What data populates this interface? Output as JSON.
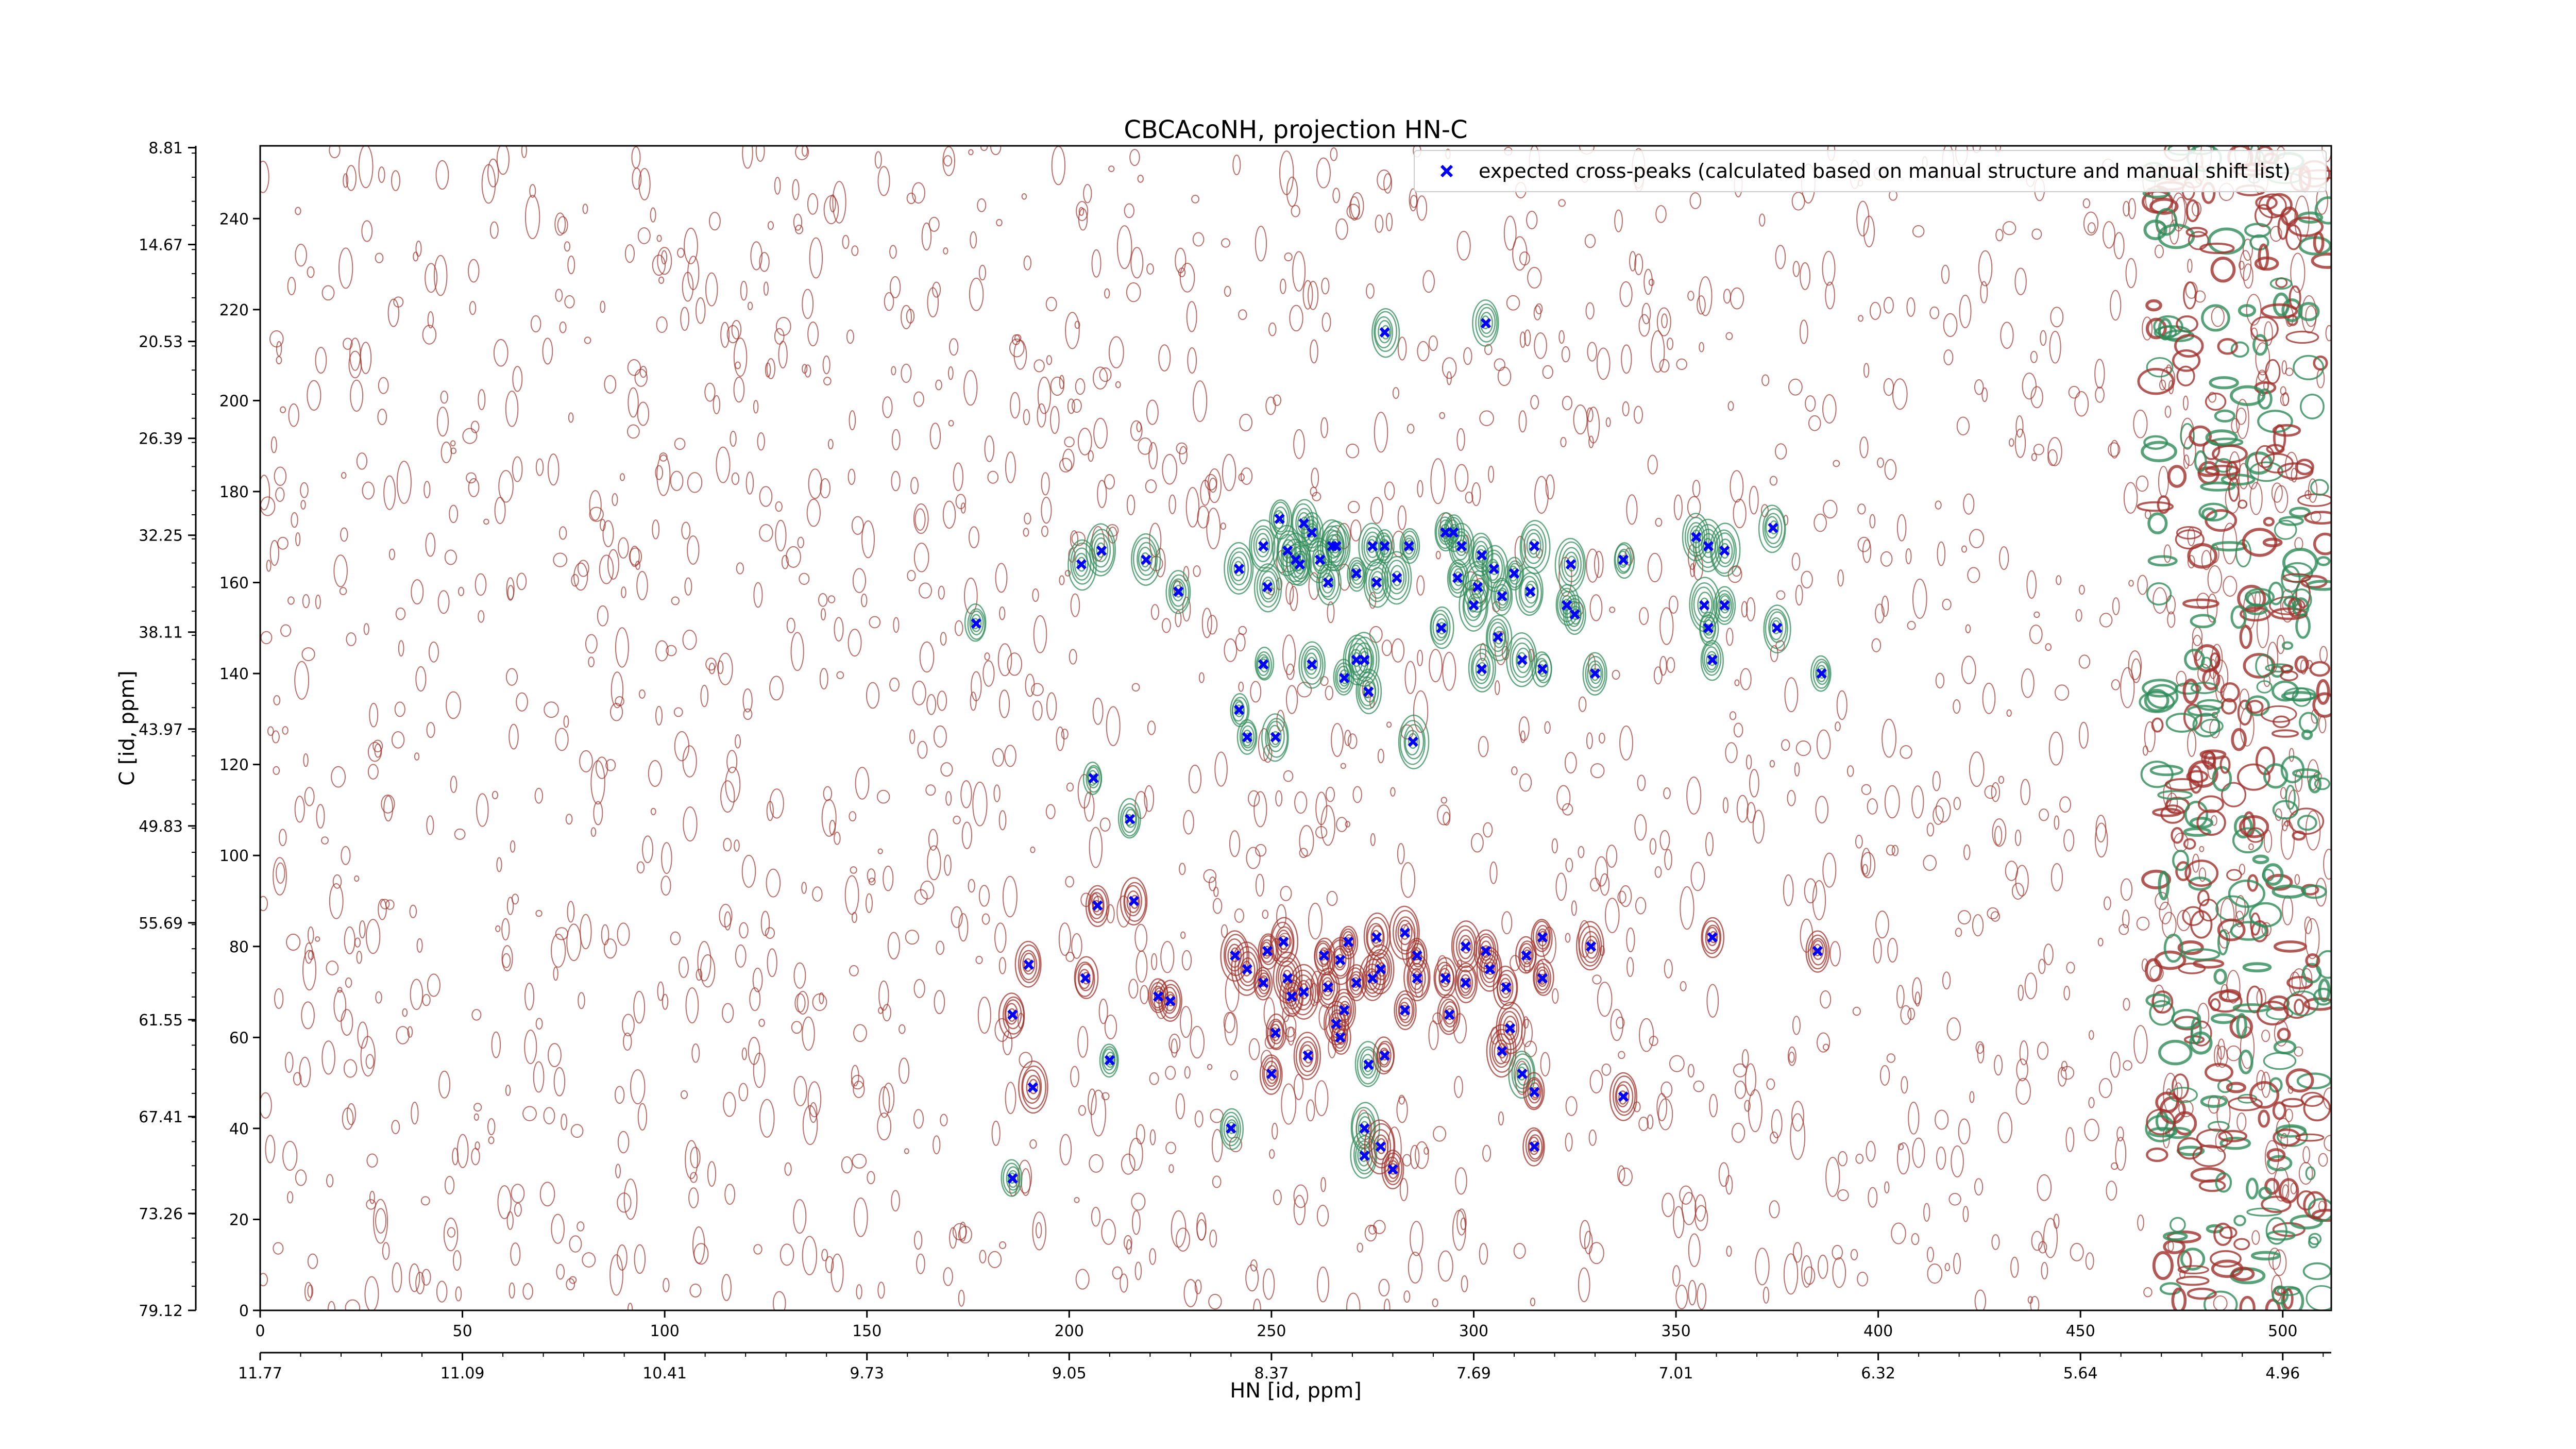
{
  "chart_data": {
    "type": "scatter",
    "title": "CBCAcoNH, projection HN-C",
    "xlabel": "HN [id, ppm]",
    "ylabel": "C [id, ppm]",
    "xlim": [
      0,
      512
    ],
    "ylim": [
      0,
      256
    ],
    "x_ticks": [
      0,
      50,
      100,
      150,
      200,
      250,
      300,
      350,
      400,
      450,
      500
    ],
    "y_ticks": [
      0,
      20,
      40,
      60,
      80,
      100,
      120,
      140,
      160,
      180,
      200,
      220,
      240
    ],
    "ppm_x_ticks": [
      {
        "pos": 0,
        "label": "11.77"
      },
      {
        "pos": 50,
        "label": "11.09"
      },
      {
        "pos": 100,
        "label": "10.41"
      },
      {
        "pos": 150,
        "label": "9.73"
      },
      {
        "pos": 200,
        "label": "9.05"
      },
      {
        "pos": 250,
        "label": "8.37"
      },
      {
        "pos": 300,
        "label": "7.69"
      },
      {
        "pos": 350,
        "label": "7.01"
      },
      {
        "pos": 400,
        "label": "6.32"
      },
      {
        "pos": 450,
        "label": "5.64"
      },
      {
        "pos": 500,
        "label": "4.96"
      }
    ],
    "ppm_y_ticks": [
      {
        "pos": 0,
        "label": "79.12"
      },
      {
        "pos": 21.3,
        "label": "73.26"
      },
      {
        "pos": 42.6,
        "label": "67.41"
      },
      {
        "pos": 63.9,
        "label": "61.55"
      },
      {
        "pos": 85.2,
        "label": "55.69"
      },
      {
        "pos": 106.5,
        "label": "49.83"
      },
      {
        "pos": 127.8,
        "label": "43.97"
      },
      {
        "pos": 149.1,
        "label": "38.11"
      },
      {
        "pos": 170.4,
        "label": "32.25"
      },
      {
        "pos": 191.7,
        "label": "26.39"
      },
      {
        "pos": 213.0,
        "label": "20.53"
      },
      {
        "pos": 234.3,
        "label": "14.67"
      },
      {
        "pos": 255.6,
        "label": "8.81"
      }
    ],
    "legend": {
      "position": "top-right",
      "label": "expected cross-peaks (calculated based on manual structure and manual shift list)"
    },
    "series": [
      {
        "name": "expected cross-peaks (calculated based on manual structure and manual shift list)",
        "color": "#0000ff",
        "marker": "x",
        "points": [
          [
            177,
            151
          ],
          [
            186,
            65
          ],
          [
            186,
            29
          ],
          [
            190,
            76
          ],
          [
            191,
            49
          ],
          [
            203,
            164
          ],
          [
            204,
            73
          ],
          [
            206,
            117
          ],
          [
            207,
            89
          ],
          [
            208,
            167
          ],
          [
            210,
            55
          ],
          [
            215,
            108
          ],
          [
            216,
            90
          ],
          [
            219,
            165
          ],
          [
            222,
            69
          ],
          [
            225,
            68
          ],
          [
            227,
            158
          ],
          [
            240,
            40
          ],
          [
            241,
            78
          ],
          [
            242,
            132
          ],
          [
            242,
            163
          ],
          [
            244,
            75
          ],
          [
            244,
            126
          ],
          [
            248,
            72
          ],
          [
            248,
            142
          ],
          [
            248,
            168
          ],
          [
            249,
            79
          ],
          [
            249,
            159
          ],
          [
            250,
            52
          ],
          [
            251,
            61
          ],
          [
            251,
            126
          ],
          [
            252,
            174
          ],
          [
            253,
            81
          ],
          [
            254,
            73
          ],
          [
            254,
            167
          ],
          [
            255,
            69
          ],
          [
            256,
            165
          ],
          [
            257,
            164
          ],
          [
            258,
            173
          ],
          [
            258,
            70
          ],
          [
            259,
            56
          ],
          [
            260,
            142
          ],
          [
            260,
            171
          ],
          [
            262,
            165
          ],
          [
            263,
            78
          ],
          [
            264,
            71
          ],
          [
            264,
            160
          ],
          [
            265,
            168
          ],
          [
            266,
            168
          ],
          [
            266,
            63
          ],
          [
            267,
            77
          ],
          [
            267,
            60
          ],
          [
            268,
            66
          ],
          [
            268,
            139
          ],
          [
            269,
            81
          ],
          [
            271,
            143
          ],
          [
            271,
            72
          ],
          [
            271,
            162
          ],
          [
            273,
            40
          ],
          [
            273,
            34
          ],
          [
            273,
            143
          ],
          [
            274,
            54
          ],
          [
            274,
            136
          ],
          [
            275,
            73
          ],
          [
            275,
            168
          ],
          [
            276,
            82
          ],
          [
            276,
            160
          ],
          [
            277,
            36
          ],
          [
            277,
            75
          ],
          [
            278,
            215
          ],
          [
            278,
            56
          ],
          [
            278,
            168
          ],
          [
            280,
            31
          ],
          [
            281,
            161
          ],
          [
            283,
            66
          ],
          [
            283,
            83
          ],
          [
            284,
            168
          ],
          [
            285,
            125
          ],
          [
            286,
            78
          ],
          [
            286,
            73
          ],
          [
            292,
            150
          ],
          [
            293,
            73
          ],
          [
            293,
            171
          ],
          [
            294,
            65
          ],
          [
            295,
            171
          ],
          [
            296,
            161
          ],
          [
            297,
            168
          ],
          [
            298,
            72
          ],
          [
            298,
            80
          ],
          [
            300,
            155
          ],
          [
            301,
            159
          ],
          [
            302,
            141
          ],
          [
            302,
            166
          ],
          [
            303,
            217
          ],
          [
            303,
            79
          ],
          [
            304,
            75
          ],
          [
            305,
            163
          ],
          [
            306,
            148
          ],
          [
            307,
            57
          ],
          [
            307,
            157
          ],
          [
            308,
            71
          ],
          [
            309,
            62
          ],
          [
            310,
            162
          ],
          [
            312,
            52
          ],
          [
            312,
            143
          ],
          [
            313,
            78
          ],
          [
            314,
            158
          ],
          [
            315,
            168
          ],
          [
            315,
            48
          ],
          [
            315,
            36
          ],
          [
            317,
            73
          ],
          [
            317,
            82
          ],
          [
            317,
            141
          ],
          [
            323,
            155
          ],
          [
            324,
            164
          ],
          [
            325,
            153
          ],
          [
            329,
            80
          ],
          [
            330,
            140
          ],
          [
            337,
            47
          ],
          [
            337,
            165
          ],
          [
            355,
            170
          ],
          [
            357,
            155
          ],
          [
            358,
            168
          ],
          [
            358,
            150
          ],
          [
            359,
            143
          ],
          [
            359,
            82
          ],
          [
            362,
            155
          ],
          [
            362,
            167
          ],
          [
            374,
            172
          ],
          [
            375,
            150
          ],
          [
            385,
            79
          ],
          [
            386,
            140
          ]
        ]
      }
    ],
    "grid": false,
    "background": "2D NMR contour plot: red (positive) and green (negative) contour levels"
  }
}
